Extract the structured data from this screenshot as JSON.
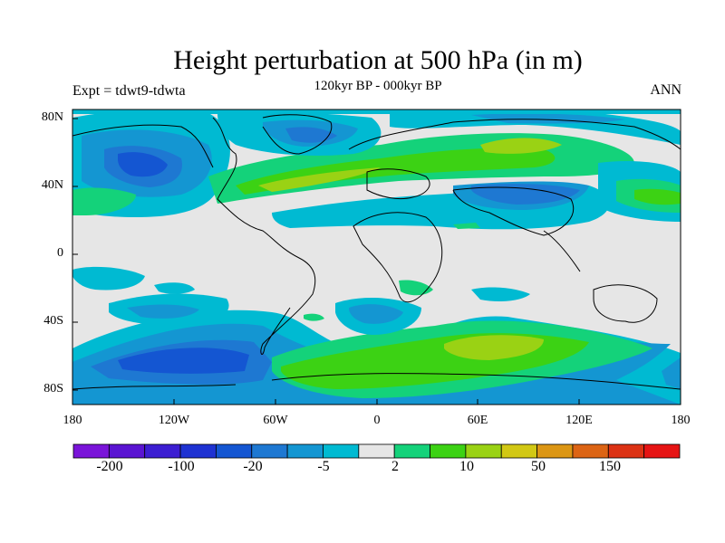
{
  "title": "Height perturbation at 500 hPa (in m)",
  "subtitle": "120kyr BP - 000kyr BP",
  "experiment": "Expt = tdwt9-tdwta",
  "season": "ANN",
  "lat_ticks": [
    "80N",
    "40N",
    "0",
    "40S",
    "80S"
  ],
  "lon_ticks": [
    "180",
    "120W",
    "60W",
    "0",
    "60E",
    "120E",
    "180"
  ],
  "colorbar": {
    "colors": [
      "#7a14d9",
      "#5a14d2",
      "#3c1ed2",
      "#1e32d2",
      "#1456d2",
      "#1e78d2",
      "#1496d2",
      "#00bad2",
      "#e6e6e6",
      "#14d27a",
      "#3cd214",
      "#9ad214",
      "#d2c814",
      "#dc9614",
      "#dc6414",
      "#dc3214",
      "#e61414"
    ],
    "labels": [
      "-200",
      "-100",
      "-20",
      "-5",
      "2",
      "10",
      "50",
      "150"
    ]
  }
}
